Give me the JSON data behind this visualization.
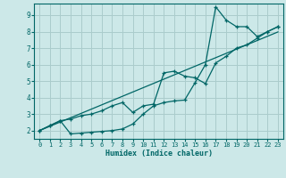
{
  "background_color": "#cce8e8",
  "grid_color": "#aacccc",
  "line_color": "#006666",
  "xlabel": "Humidex (Indice chaleur)",
  "xlim": [
    -0.5,
    23.5
  ],
  "ylim": [
    1.5,
    9.7
  ],
  "series1_x": [
    0,
    1,
    2,
    3,
    4,
    5,
    6,
    7,
    8,
    9,
    10,
    11,
    12,
    13,
    14,
    15,
    16,
    17,
    18,
    19,
    20,
    21,
    22,
    23
  ],
  "series1_y": [
    2.0,
    2.26,
    2.52,
    2.78,
    3.04,
    3.3,
    3.56,
    3.82,
    4.08,
    4.34,
    4.6,
    4.86,
    5.12,
    5.38,
    5.64,
    5.9,
    6.16,
    6.42,
    6.68,
    6.94,
    7.2,
    7.46,
    7.72,
    7.98
  ],
  "series2_x": [
    0,
    1,
    2,
    3,
    4,
    5,
    6,
    7,
    8,
    9,
    10,
    11,
    12,
    13,
    14,
    15,
    16,
    17,
    18,
    19,
    20,
    21,
    22,
    23
  ],
  "series2_y": [
    2.0,
    2.3,
    2.6,
    1.8,
    1.85,
    1.9,
    1.95,
    2.0,
    2.1,
    2.4,
    3.0,
    3.5,
    3.7,
    3.8,
    3.85,
    4.9,
    6.0,
    9.5,
    8.7,
    8.3,
    8.3,
    7.7,
    8.0,
    8.3
  ],
  "series3_x": [
    0,
    1,
    2,
    3,
    4,
    5,
    6,
    7,
    8,
    9,
    10,
    11,
    12,
    13,
    14,
    15,
    16,
    17,
    18,
    19,
    20,
    21,
    22,
    23
  ],
  "series3_y": [
    2.0,
    2.3,
    2.6,
    2.7,
    2.9,
    3.0,
    3.2,
    3.5,
    3.7,
    3.1,
    3.5,
    3.6,
    5.5,
    5.6,
    5.3,
    5.2,
    4.85,
    6.1,
    6.5,
    7.0,
    7.2,
    7.6,
    8.0,
    8.3
  ]
}
